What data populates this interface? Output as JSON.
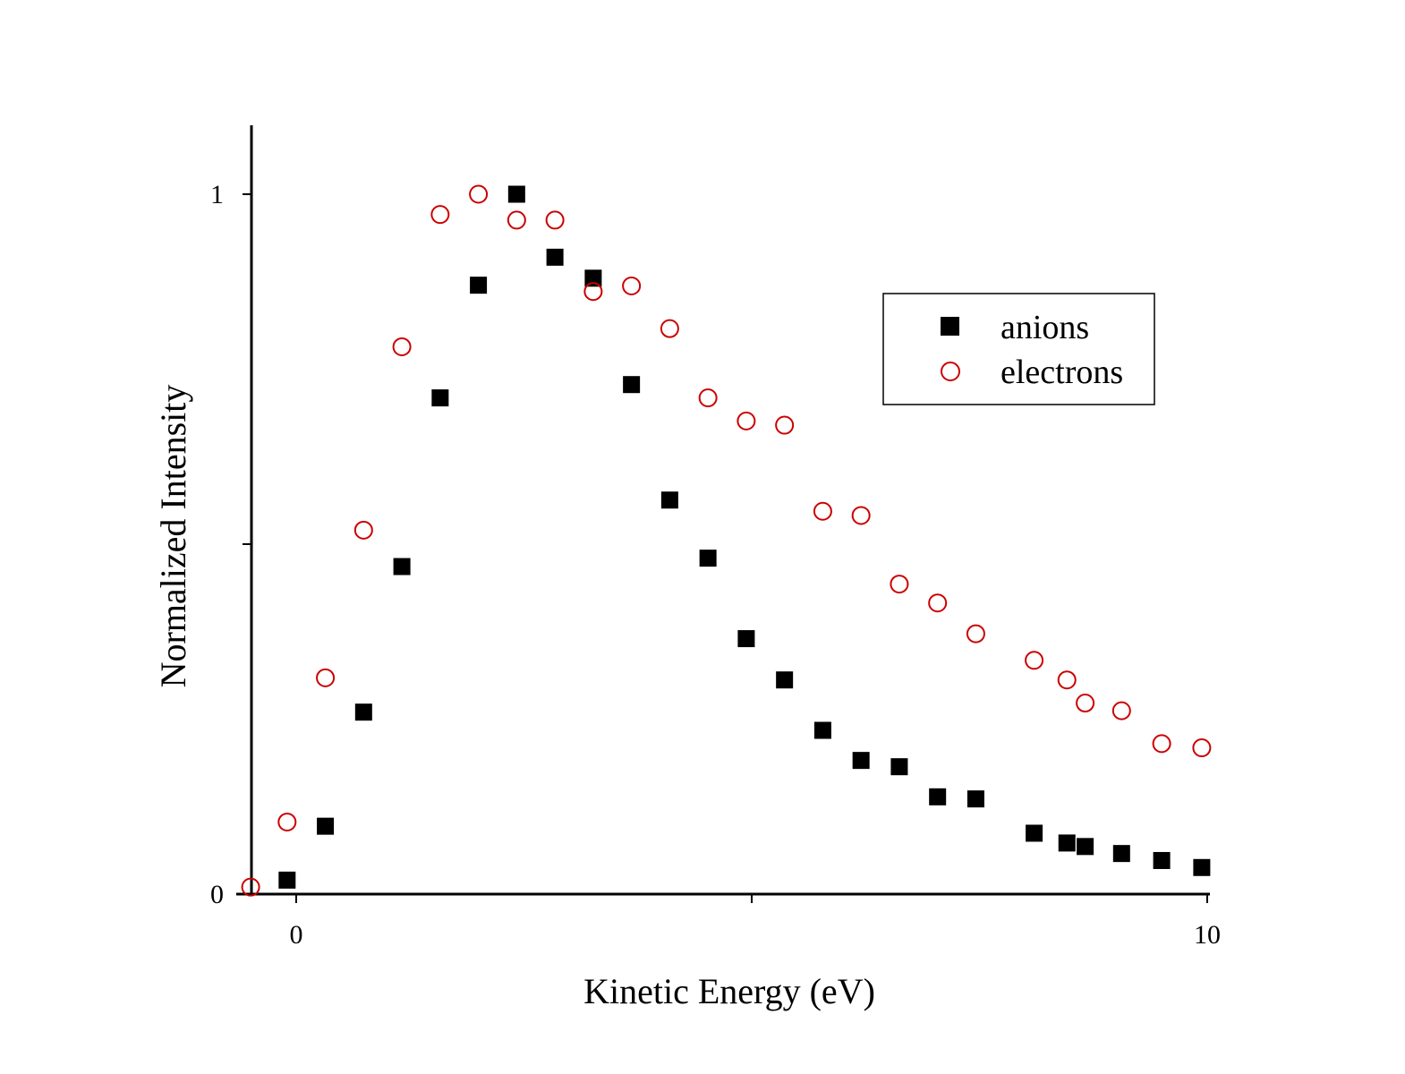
{
  "chart_data": {
    "type": "scatter",
    "title": "",
    "xlabel": "Kinetic Energy (eV)",
    "ylabel": "Normalized Intensity",
    "xlim": [
      -1.0,
      10.0
    ],
    "ylim": [
      0,
      1.1
    ],
    "x_ticks": [
      {
        "value": 0,
        "label": "0"
      },
      {
        "value": 5,
        "label": ""
      },
      {
        "value": 10,
        "label": "10"
      }
    ],
    "y_ticks": [
      {
        "value": 0,
        "label": "0"
      },
      {
        "value": 0.5,
        "label": ""
      },
      {
        "value": 1,
        "label": "1"
      }
    ],
    "grid": false,
    "legend": {
      "position": "top-right"
    },
    "series": [
      {
        "name": "anions",
        "marker": "filled-square",
        "color": "#000000",
        "x": [
          -0.1,
          0.32,
          0.74,
          1.16,
          1.58,
          2.0,
          2.42,
          2.84,
          3.26,
          3.68,
          4.1,
          4.52,
          4.94,
          5.36,
          5.78,
          6.2,
          6.62,
          7.04,
          7.46,
          8.1,
          8.46,
          8.66,
          9.06,
          9.5,
          9.94
        ],
        "y": [
          0.02,
          0.097,
          0.26,
          0.468,
          0.709,
          0.87,
          1.0,
          0.91,
          0.88,
          0.728,
          0.563,
          0.48,
          0.365,
          0.306,
          0.234,
          0.191,
          0.182,
          0.139,
          0.136,
          0.087,
          0.073,
          0.068,
          0.058,
          0.048,
          0.038
        ]
      },
      {
        "name": "electrons",
        "marker": "open-circle",
        "color": "#cc0000",
        "x": [
          -0.5,
          -0.1,
          0.32,
          0.74,
          1.16,
          1.58,
          2.0,
          2.42,
          2.84,
          3.26,
          3.68,
          4.1,
          4.52,
          4.94,
          5.36,
          5.78,
          6.2,
          6.62,
          7.04,
          7.46,
          8.1,
          8.46,
          8.66,
          9.06,
          9.5,
          9.94
        ],
        "y": [
          0.01,
          0.103,
          0.309,
          0.52,
          0.782,
          0.971,
          1.0,
          0.963,
          0.963,
          0.861,
          0.869,
          0.808,
          0.709,
          0.676,
          0.67,
          0.547,
          0.541,
          0.443,
          0.416,
          0.372,
          0.334,
          0.306,
          0.273,
          0.262,
          0.215,
          0.209
        ]
      }
    ]
  }
}
